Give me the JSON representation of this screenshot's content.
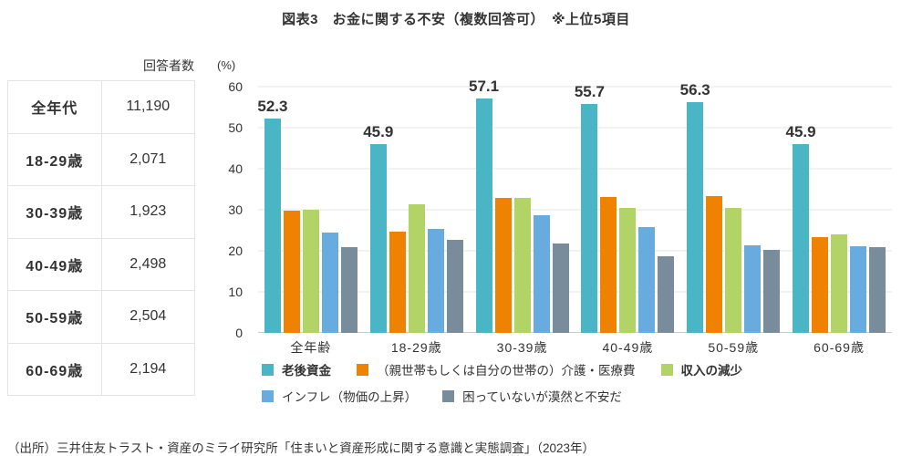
{
  "title": "図表3　お金に関する不安（複数回答可）　※上位5項目",
  "table": {
    "header": "回答者数",
    "rows": [
      {
        "label": "全年代",
        "value": "11,190"
      },
      {
        "label": "18-29歳",
        "value": "2,071"
      },
      {
        "label": "30-39歳",
        "value": "1,923"
      },
      {
        "label": "40-49歳",
        "value": "2,498"
      },
      {
        "label": "50-59歳",
        "value": "2,504"
      },
      {
        "label": "60-69歳",
        "value": "2,194"
      }
    ]
  },
  "chart_data": {
    "type": "bar",
    "title": "お金に関する不安（複数回答可）",
    "unit_label": "(%)",
    "ylabel": "%",
    "ylim": [
      0,
      60
    ],
    "yticks": [
      0,
      10,
      20,
      30,
      40,
      50,
      60
    ],
    "grid": true,
    "legend_position": "bottom",
    "categories": [
      "全年齢",
      "18-29歳",
      "30-39歳",
      "40-49歳",
      "50-59歳",
      "60-69歳"
    ],
    "series": [
      {
        "name": "老後資金",
        "color": "#4ab5c5",
        "bold_legend": true,
        "values": [
          52.3,
          45.9,
          57.1,
          55.7,
          56.3,
          45.9
        ]
      },
      {
        "name": "（親世帯もしくは自分の世帯の）介護・医療費",
        "color": "#ef8200",
        "bold_legend": false,
        "values": [
          29.7,
          24.6,
          32.9,
          33.2,
          33.3,
          23.4
        ]
      },
      {
        "name": "収入の減少",
        "color": "#b2d366",
        "bold_legend": true,
        "values": [
          29.9,
          31.3,
          33.0,
          30.5,
          30.5,
          23.9
        ]
      },
      {
        "name": "インフレ（物価の上昇）",
        "color": "#68abde",
        "bold_legend": false,
        "values": [
          24.4,
          25.4,
          28.6,
          25.8,
          21.4,
          21.2
        ]
      },
      {
        "name": "困っていないが漠然と不安だ",
        "color": "#798c9b",
        "bold_legend": false,
        "values": [
          20.8,
          22.6,
          21.7,
          18.6,
          20.2,
          20.8
        ]
      }
    ],
    "bar_labels": [
      "52.3",
      "45.9",
      "57.1",
      "55.7",
      "56.3",
      "45.9"
    ],
    "legend_rows": [
      [
        0,
        1,
        2
      ],
      [
        3,
        4
      ]
    ]
  },
  "source": "（出所）三井住友トラスト・資産のミライ研究所「住まいと資産形成に関する意識と実態調査」（2023年）"
}
